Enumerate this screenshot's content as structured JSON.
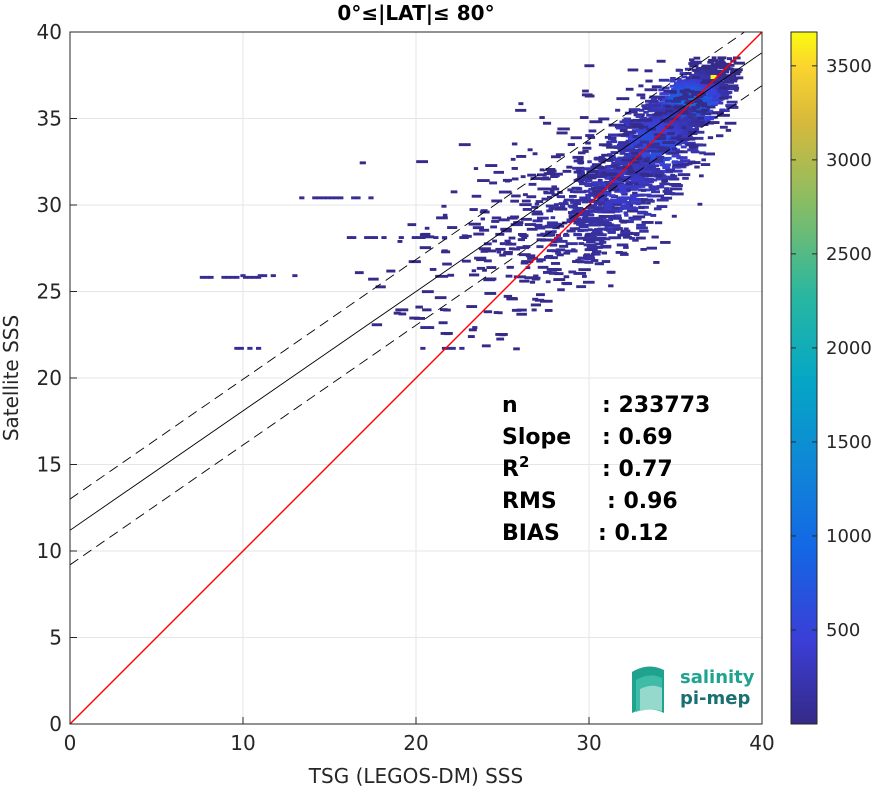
{
  "chart_data": {
    "type": "heatmap",
    "title": "0°≤|LAT|≤ 80°",
    "xlabel": "TSG (LEGOS-DM) SSS",
    "ylabel": "Satellite SSS",
    "xlim": [
      0,
      40
    ],
    "ylim": [
      0,
      40
    ],
    "xticks": [
      "0",
      "10",
      "20",
      "30",
      "40"
    ],
    "yticks": [
      "0",
      "5",
      "10",
      "15",
      "20",
      "25",
      "30",
      "35",
      "40"
    ],
    "grid": true,
    "colormap": "parula",
    "colorbar": {
      "min": 0,
      "max": 3680,
      "ticks": [
        "500",
        "1000",
        "1500",
        "2000",
        "2500",
        "3000",
        "3500"
      ],
      "tick_values": [
        500,
        1000,
        1500,
        2000,
        2500,
        3000,
        3500
      ]
    },
    "lines": [
      {
        "kind": "identity",
        "color": "#ff0000",
        "from": [
          0,
          0
        ],
        "to": [
          40,
          40
        ]
      },
      {
        "kind": "fit",
        "color": "#000000",
        "dash": "solid",
        "from": [
          0,
          11.2
        ],
        "to": [
          40,
          38.8
        ]
      },
      {
        "kind": "fit_upper",
        "color": "#000000",
        "dash": "dashed",
        "from": [
          0,
          13.0
        ],
        "to": [
          40,
          40.7
        ]
      },
      {
        "kind": "fit_lower",
        "color": "#000000",
        "dash": "dashed",
        "from": [
          0,
          9.2
        ],
        "to": [
          40,
          36.9
        ]
      }
    ],
    "stats": [
      {
        "label": "n",
        "value": ": 233773"
      },
      {
        "label": "Slope",
        "value": ": 0.69"
      },
      {
        "label": "R",
        "sup": "2",
        "value": ": 0.77"
      },
      {
        "label": "RMS",
        "value": ": 0.96"
      },
      {
        "label": "BIAS",
        "value": ": 0.12"
      }
    ],
    "density_clusters": [
      {
        "x": 35.5,
        "y": 36.0,
        "sx": 1.2,
        "sy": 0.8,
        "weight": 1.0
      },
      {
        "x": 33.5,
        "y": 33.5,
        "sx": 1.6,
        "sy": 1.3,
        "weight": 0.6
      },
      {
        "x": 31.5,
        "y": 31.0,
        "sx": 2.0,
        "sy": 1.8,
        "weight": 0.35
      },
      {
        "x": 29.0,
        "y": 29.0,
        "sx": 2.5,
        "sy": 2.2,
        "weight": 0.15
      },
      {
        "x": 25.0,
        "y": 29.5,
        "sx": 3.5,
        "sy": 2.5,
        "weight": 0.05
      }
    ],
    "hotspot": {
      "x": 37.2,
      "y": 37.4,
      "count": 3680
    }
  },
  "logo": {
    "line1": "salinity",
    "line2": "pi-mep"
  }
}
